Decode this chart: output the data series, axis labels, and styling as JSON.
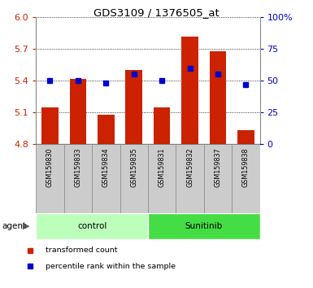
{
  "title": "GDS3109 / 1376505_at",
  "samples": [
    "GSM159830",
    "GSM159833",
    "GSM159834",
    "GSM159835",
    "GSM159831",
    "GSM159832",
    "GSM159837",
    "GSM159838"
  ],
  "transformed_count": [
    5.15,
    5.42,
    5.08,
    5.5,
    5.15,
    5.82,
    5.68,
    4.93
  ],
  "percentile_rank": [
    50,
    50,
    48,
    55,
    50,
    60,
    55,
    47
  ],
  "ymin": 4.8,
  "ymax": 6.0,
  "yticks": [
    4.8,
    5.1,
    5.4,
    5.7,
    6.0
  ],
  "right_yticks": [
    0,
    25,
    50,
    75,
    100
  ],
  "right_yticklabels": [
    "0",
    "25",
    "50",
    "75",
    "100%"
  ],
  "bar_color": "#cc2200",
  "dot_color": "#0000cc",
  "bar_base": 4.8,
  "groups": [
    {
      "label": "control",
      "start": 0,
      "end": 4,
      "color": "#bbffbb"
    },
    {
      "label": "Sunitinib",
      "start": 4,
      "end": 8,
      "color": "#44dd44"
    }
  ],
  "agent_label": "agent",
  "legend_items": [
    {
      "color": "#cc2200",
      "label": "transformed count"
    },
    {
      "color": "#0000cc",
      "label": "percentile rank within the sample"
    }
  ],
  "left_tick_color": "#cc2200",
  "right_tick_color": "#0000cc",
  "grid_color": "#000000",
  "bar_width": 0.6,
  "label_box_color": "#cccccc",
  "label_box_edge": "#888888"
}
